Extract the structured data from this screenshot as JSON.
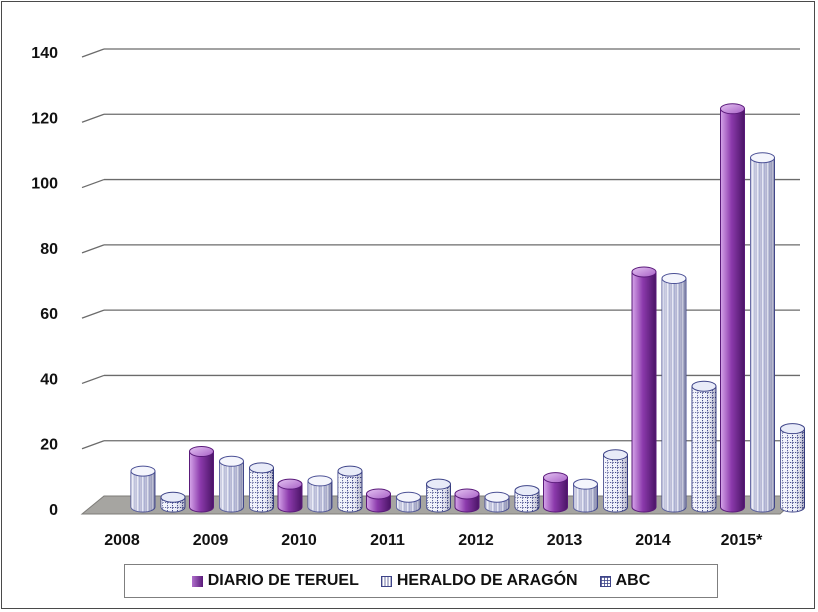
{
  "chart_data": {
    "type": "bar",
    "categories": [
      "2008",
      "2009",
      "2010",
      "2011",
      "2012",
      "2013",
      "2014",
      "2015*"
    ],
    "series": [
      {
        "name": "DIARIO DE TERUEL",
        "values": [
          0,
          17,
          7,
          4,
          4,
          9,
          72,
          122
        ]
      },
      {
        "name": "HERALDO DE ARAGÓN",
        "values": [
          11,
          14,
          8,
          3,
          3,
          7,
          70,
          107
        ]
      },
      {
        "name": "ABC",
        "values": [
          3,
          12,
          11,
          7,
          5,
          16,
          37,
          24
        ]
      }
    ],
    "ylim": [
      0,
      140
    ],
    "yticks": [
      "0",
      "20",
      "40",
      "60",
      "80",
      "100",
      "120",
      "140"
    ],
    "grid": true,
    "legend_position": "bottom",
    "style": "3d-cylinder",
    "colors": {
      "diario": "#7a2e98",
      "heraldo": "#dcdff0",
      "abc": "#c7cde6",
      "floor": "#a6a5a1",
      "grid": "#6b6b6b"
    }
  }
}
